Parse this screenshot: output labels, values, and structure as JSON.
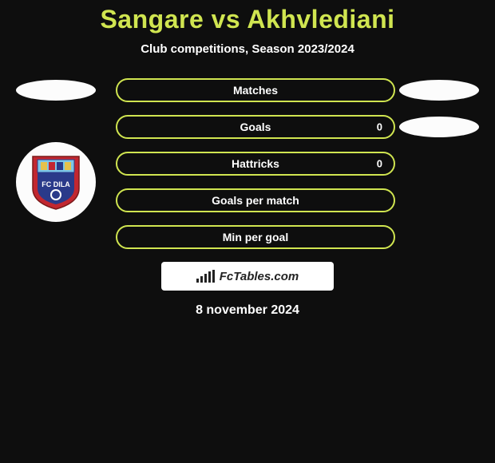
{
  "title": "Sangare vs Akhvlediani",
  "subtitle": "Club competitions, Season 2023/2024",
  "rows": [
    {
      "label": "Matches",
      "right_val": "",
      "left_pill": true,
      "right_pill": true
    },
    {
      "label": "Goals",
      "right_val": "0",
      "left_pill": false,
      "right_pill": true
    },
    {
      "label": "Hattricks",
      "right_val": "0",
      "left_pill": false,
      "right_pill": false
    },
    {
      "label": "Goals per match",
      "right_val": "",
      "left_pill": false,
      "right_pill": false
    },
    {
      "label": "Min per goal",
      "right_val": "",
      "left_pill": false,
      "right_pill": false
    }
  ],
  "brand": "FcTables.com",
  "date": "8 november 2024",
  "colors": {
    "accent": "#d0e550",
    "bg": "#0e0e0e",
    "pill": "#fcfcfc",
    "shield_red": "#c22730",
    "shield_blue": "#2a3a8a",
    "shield_sky": "#7cc6e8",
    "shield_yellow": "#e6c14a"
  }
}
